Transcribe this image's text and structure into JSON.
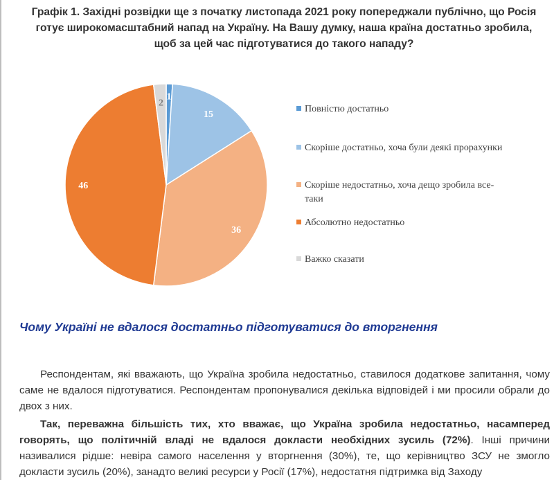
{
  "chart_title": "Графік 1. Західні розвідки ще з початку листопада 2021 року попереджали публічно, що Росія готує широкомасштабний напад на Україну. На Вашу думку, наша країна достатньо зробила, щоб за цей час підготуватися до такого нападу?",
  "chart_data": {
    "type": "pie",
    "title": "Графік 1. Західні розвідки ще з початку листопада 2021 року попереджали публічно, що Росія готує широкомасштабний напад на Україну. На Вашу думку, наша країна достатньо зробила, щоб за цей час підготуватися до такого нападу?",
    "categories": [
      "Повністю достатньо",
      "Скоріше достатньо, хоча були деякі прорахунки",
      "Скоріше недостатньо, хоча дещо зробила все-таки",
      "Абсолютно недостатньо",
      "Важко сказати"
    ],
    "values": [
      1,
      15,
      36,
      46,
      2
    ],
    "colors": [
      "#5b9bd5",
      "#9dc3e6",
      "#f4b183",
      "#ed7d31",
      "#d9d9d9"
    ],
    "label_colors": [
      "#ffffff",
      "#ffffff",
      "#ffffff",
      "#ffffff",
      "#7f7f7f"
    ],
    "legend_position": "right"
  },
  "section_heading": "Чому Україні не вдалося достатньо підготуватися до вторгнення",
  "paragraph_1": "Респондентам, які вважають, що Україна зробила недостатньо, ставилося додаткове запитання, чому саме не вдалося підготуватися. Респондентам пропонувалися декілька відповідей і ми просили обрали до двох з них.",
  "paragraph_2_bold": "Так, переважна більшість тих, хто вважає, що Україна зробила недостатньо, насамперед говорять, що політичній владі не вдалося докласти необхідних зусиль (72%)",
  "paragraph_2_rest": ". Інші причини називалися рідше: невіра самого населення у вторгнення (30%), те, що керівництво ЗСУ не змогло докласти зусиль (20%), занадто великі ресурси у Росії (17%), недостатня підтримка від Заходу"
}
